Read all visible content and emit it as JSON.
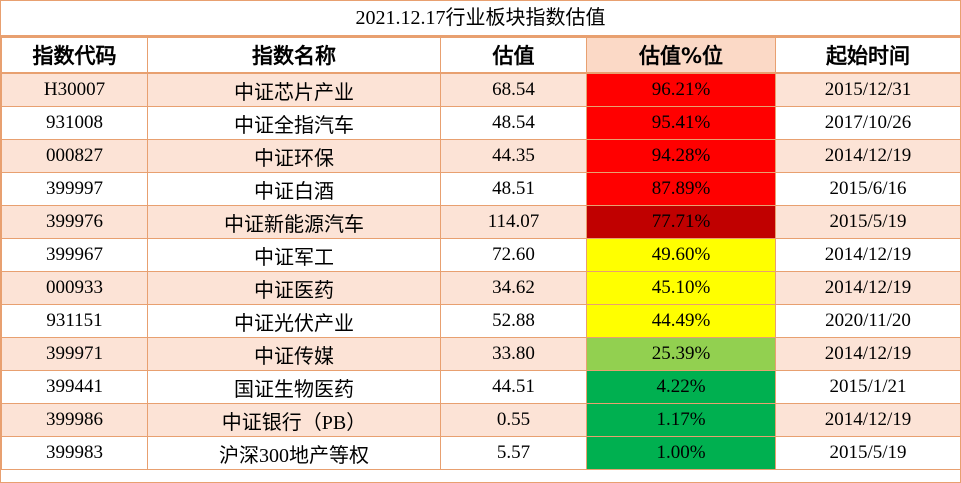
{
  "title": "2021.12.17行业板块指数估值",
  "headers": {
    "code": "指数代码",
    "name": "指数名称",
    "value": "估值",
    "percentile": "估值%位",
    "start": "起始时间"
  },
  "colors": {
    "border": "#e8a070",
    "row_shade": "#fce3d6",
    "header_percentile_bg": "#fbd9c6",
    "red": "#ff0000",
    "dark_red": "#c00000",
    "yellow": "#ffff00",
    "light_green": "#92d050",
    "green": "#00b050"
  },
  "rows": [
    {
      "code": "H30007",
      "name": "中证芯片产业",
      "value": "68.54",
      "percentile": "96.21%",
      "start": "2015/12/31",
      "color": "#ff0000",
      "shaded": true
    },
    {
      "code": "931008",
      "name": "中证全指汽车",
      "value": "48.54",
      "percentile": "95.41%",
      "start": "2017/10/26",
      "color": "#ff0000",
      "shaded": false
    },
    {
      "code": "000827",
      "name": "中证环保",
      "value": "44.35",
      "percentile": "94.28%",
      "start": "2014/12/19",
      "color": "#ff0000",
      "shaded": true
    },
    {
      "code": "399997",
      "name": "中证白酒",
      "value": "48.51",
      "percentile": "87.89%",
      "start": "2015/6/16",
      "color": "#ff0000",
      "shaded": false
    },
    {
      "code": "399976",
      "name": "中证新能源汽车",
      "value": "114.07",
      "percentile": "77.71%",
      "start": "2015/5/19",
      "color": "#c00000",
      "shaded": true
    },
    {
      "code": "399967",
      "name": "中证军工",
      "value": "72.60",
      "percentile": "49.60%",
      "start": "2014/12/19",
      "color": "#ffff00",
      "shaded": false
    },
    {
      "code": "000933",
      "name": "中证医药",
      "value": "34.62",
      "percentile": "45.10%",
      "start": "2014/12/19",
      "color": "#ffff00",
      "shaded": true
    },
    {
      "code": "931151",
      "name": "中证光伏产业",
      "value": "52.88",
      "percentile": "44.49%",
      "start": "2020/11/20",
      "color": "#ffff00",
      "shaded": false
    },
    {
      "code": "399971",
      "name": "中证传媒",
      "value": "33.80",
      "percentile": "25.39%",
      "start": "2014/12/19",
      "color": "#92d050",
      "shaded": true
    },
    {
      "code": "399441",
      "name": "国证生物医药",
      "value": "44.51",
      "percentile": "4.22%",
      "start": "2015/1/21",
      "color": "#00b050",
      "shaded": false
    },
    {
      "code": "399986",
      "name": "中证银行（PB）",
      "value": "0.55",
      "percentile": "1.17%",
      "start": "2014/12/19",
      "color": "#00b050",
      "shaded": true
    },
    {
      "code": "399983",
      "name": "沪深300地产等权",
      "value": "5.57",
      "percentile": "1.00%",
      "start": "2015/5/19",
      "color": "#00b050",
      "shaded": false
    }
  ]
}
